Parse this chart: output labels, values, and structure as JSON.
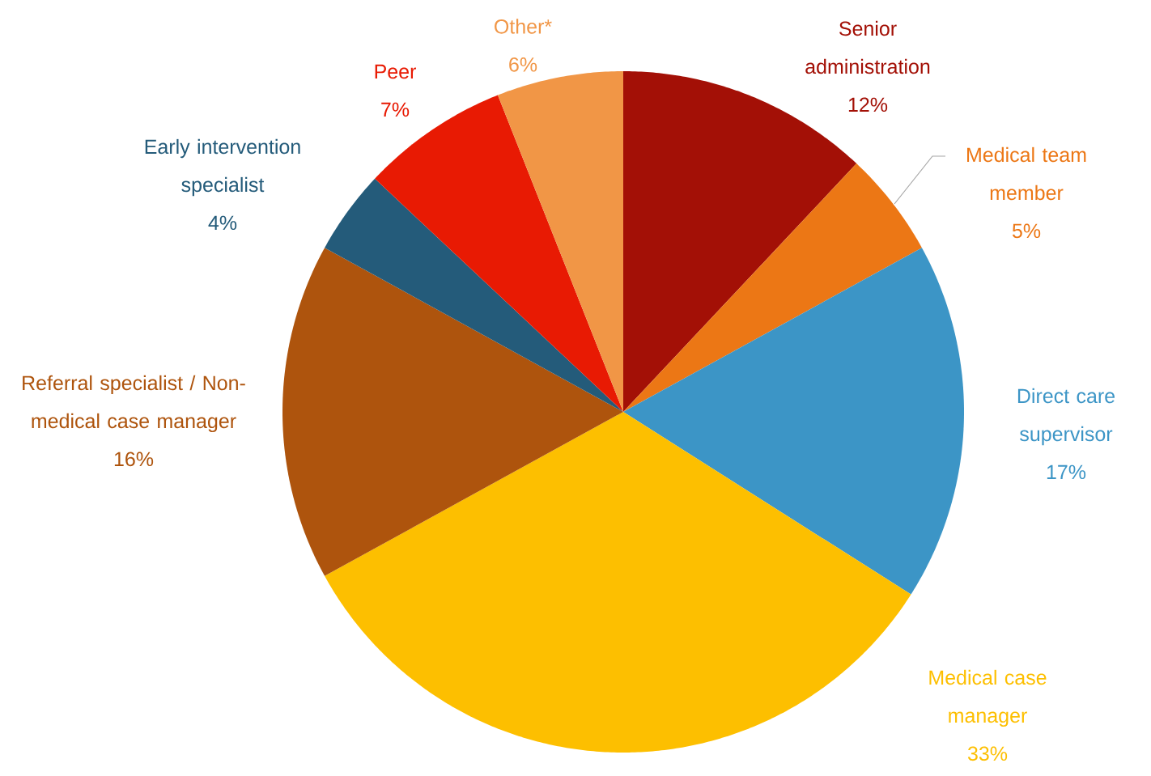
{
  "chart_data": {
    "type": "pie",
    "categories": [
      "Senior administration",
      "Medical team member",
      "Direct care supervisor",
      "Medical case manager",
      "Referral specialist / Non-medical case manager",
      "Early intervention specialist",
      "Peer",
      "Other*"
    ],
    "values": [
      12,
      5,
      17,
      33,
      16,
      4,
      7,
      6
    ],
    "value_labels": [
      "12%",
      "5%",
      "17%",
      "33%",
      "16%",
      "4%",
      "7%",
      "6%"
    ],
    "colors": [
      "#a31006",
      "#ec7715",
      "#3c95c6",
      "#fdbf00",
      "#ae540d",
      "#245b7a",
      "#e81a03",
      "#f19646"
    ]
  }
}
